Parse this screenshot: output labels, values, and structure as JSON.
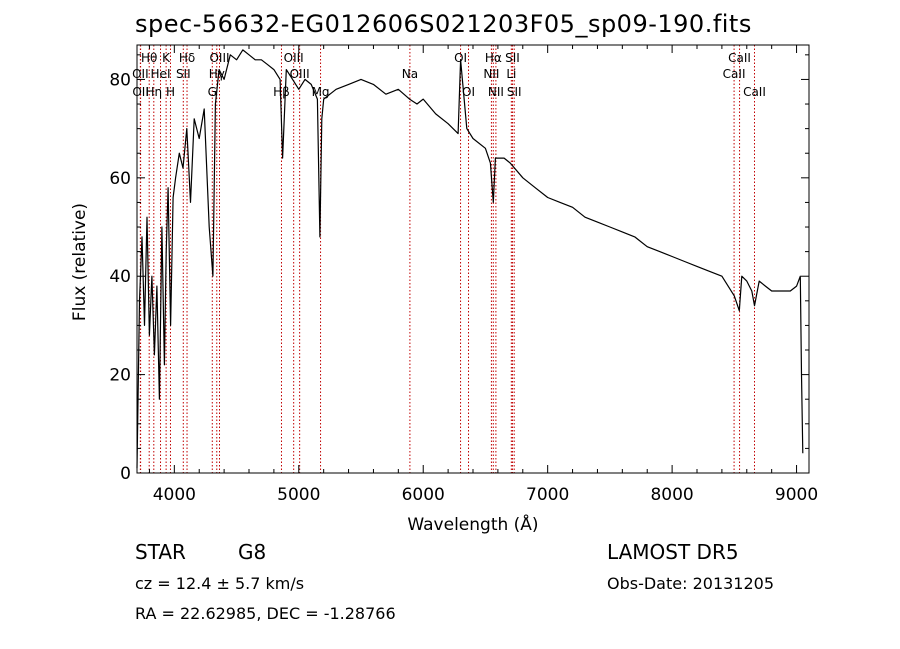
{
  "chart_data": {
    "type": "line",
    "title": "spec-56632-EG012606S021203F05_sp09-190.fits",
    "xlabel": "Wavelength (Å)",
    "ylabel": "Flux (relative)",
    "xlim": [
      3700,
      9100
    ],
    "ylim": [
      0,
      87
    ],
    "x_ticks": [
      4000,
      5000,
      6000,
      7000,
      8000,
      9000
    ],
    "y_ticks": [
      0,
      20,
      40,
      60,
      80
    ],
    "grid": false,
    "series": [
      {
        "color": "#000000",
        "x": [
          3700,
          3720,
          3740,
          3760,
          3780,
          3800,
          3820,
          3840,
          3860,
          3880,
          3900,
          3920,
          3935,
          3950,
          3970,
          3990,
          4010,
          4040,
          4070,
          4100,
          4130,
          4160,
          4200,
          4240,
          4280,
          4310,
          4330,
          4360,
          4400,
          4450,
          4500,
          4550,
          4600,
          4650,
          4700,
          4750,
          4800,
          4850,
          4870,
          4900,
          4950,
          5000,
          5050,
          5100,
          5150,
          5170,
          5185,
          5200,
          5250,
          5300,
          5400,
          5500,
          5600,
          5700,
          5800,
          5890,
          5950,
          6000,
          6100,
          6200,
          6280,
          6300,
          6350,
          6400,
          6500,
          6540,
          6563,
          6580,
          6650,
          6700,
          6800,
          6900,
          7000,
          7100,
          7200,
          7300,
          7400,
          7500,
          7600,
          7700,
          7800,
          7900,
          8000,
          8100,
          8200,
          8300,
          8400,
          8450,
          8500,
          8540,
          8560,
          8600,
          8640,
          8662,
          8700,
          8750,
          8800,
          8900,
          8950,
          9000,
          9030,
          9040,
          9050
        ],
        "y": [
          1,
          35,
          48,
          30,
          52,
          28,
          40,
          24,
          38,
          15,
          50,
          22,
          45,
          58,
          30,
          56,
          60,
          65,
          62,
          70,
          55,
          72,
          68,
          74,
          50,
          40,
          75,
          82,
          80,
          85,
          84,
          86,
          85,
          84,
          84,
          83,
          82,
          80,
          64,
          82,
          80,
          78,
          80,
          79,
          76,
          48,
          72,
          76,
          77,
          78,
          79,
          80,
          79,
          77,
          78,
          76,
          75,
          76,
          73,
          71,
          69,
          84,
          70,
          68,
          66,
          63,
          55,
          64,
          64,
          63,
          60,
          58,
          56,
          55,
          54,
          52,
          51,
          50,
          49,
          48,
          46,
          45,
          44,
          43,
          42,
          41,
          40,
          38,
          36,
          33,
          40,
          39,
          37,
          34,
          39,
          38,
          37,
          37,
          37,
          38,
          40,
          20,
          4
        ]
      }
    ],
    "lines": [
      {
        "label": "Hθ",
        "x": 3798,
        "row": 1
      },
      {
        "label": "OII",
        "x": 3727,
        "row": 2
      },
      {
        "label": "OII",
        "x": 3729,
        "row": 3
      },
      {
        "label": "K",
        "x": 3934,
        "row": 1
      },
      {
        "label": "HeI",
        "x": 3889,
        "row": 2
      },
      {
        "label": "Hη",
        "x": 3835,
        "row": 3
      },
      {
        "label": "H",
        "x": 3969,
        "row": 3
      },
      {
        "label": "Hδ",
        "x": 4102,
        "row": 1
      },
      {
        "label": "SII",
        "x": 4072,
        "row": 2
      },
      {
        "label": "OIII",
        "x": 4363,
        "row": 1
      },
      {
        "label": "Hγ",
        "x": 4341,
        "row": 2
      },
      {
        "label": "G",
        "x": 4305,
        "row": 3
      },
      {
        "label": "OIII",
        "x": 4959,
        "row": 1
      },
      {
        "label": "OIII",
        "x": 5007,
        "row": 2
      },
      {
        "label": "Hβ",
        "x": 4861,
        "row": 3
      },
      {
        "label": "Mg",
        "x": 5175,
        "row": 3
      },
      {
        "label": "Na",
        "x": 5893,
        "row": 2
      },
      {
        "label": "OI",
        "x": 6300,
        "row": 1
      },
      {
        "label": "OI",
        "x": 6364,
        "row": 3
      },
      {
        "label": "Hα",
        "x": 6563,
        "row": 1
      },
      {
        "label": "NII",
        "x": 6548,
        "row": 2
      },
      {
        "label": "NII",
        "x": 6584,
        "row": 3
      },
      {
        "label": "SII",
        "x": 6717,
        "row": 1
      },
      {
        "label": "Li",
        "x": 6708,
        "row": 2
      },
      {
        "label": "SII",
        "x": 6731,
        "row": 3
      },
      {
        "label": "CaII",
        "x": 8542,
        "row": 1
      },
      {
        "label": "CaII",
        "x": 8498,
        "row": 2
      },
      {
        "label": "CaII",
        "x": 8662,
        "row": 3
      }
    ]
  },
  "info": {
    "class": "STAR",
    "subclass": "G8",
    "survey": "LAMOST  DR5",
    "redshift": "cz = 12.4 ± 5.7 km/s",
    "obs_date": "Obs-Date: 20131205",
    "coords": "RA =  22.62985, DEC =  -1.28766"
  }
}
